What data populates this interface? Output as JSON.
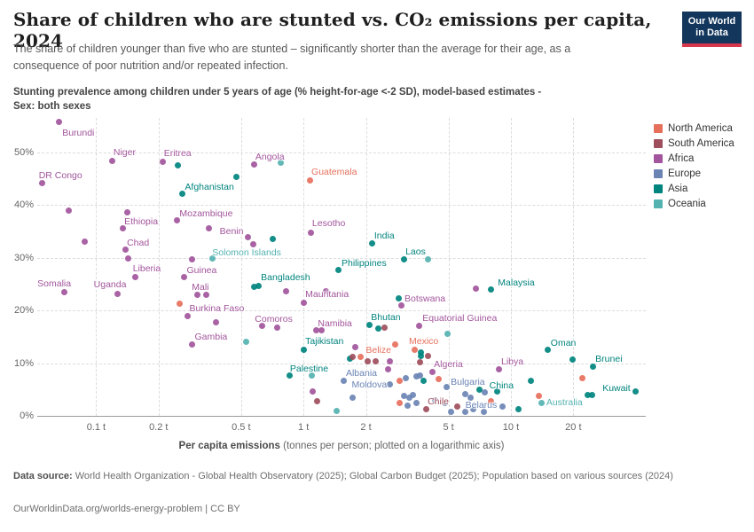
{
  "header": {
    "title": "Share of children who are stunted vs. CO₂ emissions per capita, 2024",
    "subtitle": "The share of children younger than five who are stunted – significantly shorter than the average for their age, as a consequence of poor nutrition and/or repeated infection.",
    "note_line1": "Stunting prevalence among children under 5 years of age (% height-for-age <-2 SD), model-based estimates -",
    "note_line2": "Sex: both sexes",
    "logo_line1": "Our World",
    "logo_line2": "in Data"
  },
  "chart_data": {
    "type": "scatter",
    "x_log": true,
    "xlim": [
      0.052,
      44.7
    ],
    "ylim": [
      0,
      56.5
    ],
    "grid": true,
    "legend_position": "right",
    "xlabel_bold": "Per capita emissions",
    "xlabel_rest": " (tonnes per person; plotted on a logarithmic axis)",
    "x_ticks": [
      {
        "v": 0.1,
        "label": "0.1 t"
      },
      {
        "v": 0.2,
        "label": "0.2 t"
      },
      {
        "v": 0.5,
        "label": "0.5 t"
      },
      {
        "v": 1,
        "label": "1 t"
      },
      {
        "v": 2,
        "label": "2 t"
      },
      {
        "v": 5,
        "label": "5 t"
      },
      {
        "v": 10,
        "label": "10 t"
      },
      {
        "v": 20,
        "label": "20 t"
      }
    ],
    "y_ticks": [
      {
        "v": 0,
        "label": "0%"
      },
      {
        "v": 10,
        "label": "10%"
      },
      {
        "v": 20,
        "label": "20%"
      },
      {
        "v": 30,
        "label": "30%"
      },
      {
        "v": 40,
        "label": "40%"
      },
      {
        "v": 50,
        "label": "50%"
      }
    ],
    "continent_colors": {
      "na": "#e6705c",
      "sa": "#9e4e5c",
      "af": "#a2559c",
      "eu": "#6b84b4",
      "as": "#00847e",
      "oc": "#54b2b0"
    },
    "legend": [
      {
        "label": "North America",
        "c": "na"
      },
      {
        "label": "South America",
        "c": "sa"
      },
      {
        "label": "Africa",
        "c": "af"
      },
      {
        "label": "Europe",
        "c": "eu"
      },
      {
        "label": "Asia",
        "c": "as"
      },
      {
        "label": "Oceania",
        "c": "oc"
      }
    ],
    "points": [
      {
        "n": "Burundi",
        "c": "af",
        "x": 0.066,
        "y": 55.7,
        "l": [
          4,
          12
        ]
      },
      {
        "n": "Niger",
        "c": "af",
        "x": 0.12,
        "y": 48.3,
        "l": [
          1,
          -10
        ]
      },
      {
        "n": "Eritrea",
        "c": "af",
        "x": 0.21,
        "y": 48.1,
        "l": [
          1,
          -10
        ]
      },
      {
        "n": "Angola",
        "c": "af",
        "x": 0.58,
        "y": 47.6,
        "l": [
          1,
          -9
        ]
      },
      {
        "n": "DR Congo",
        "c": "af",
        "x": 0.055,
        "y": 44.1,
        "l": [
          -4,
          -9
        ]
      },
      {
        "n": "Afghanistan",
        "c": "as",
        "x": 0.26,
        "y": 42.1,
        "l": [
          3,
          -8
        ]
      },
      {
        "n": "Guatemala",
        "c": "na",
        "x": 1.07,
        "y": 44.6,
        "l": [
          2,
          -10
        ]
      },
      {
        "n": "Ethiopia",
        "c": "af",
        "x": 0.134,
        "y": 35.5,
        "l": [
          2,
          -8
        ]
      },
      {
        "n": "Mozambique",
        "c": "af",
        "x": 0.245,
        "y": 37.0,
        "l": [
          3,
          -8
        ]
      },
      {
        "n": "Chad",
        "c": "af",
        "x": 0.138,
        "y": 31.5,
        "l": [
          2,
          -8
        ]
      },
      {
        "n": "Benin",
        "c": "af",
        "x": 0.54,
        "y": 33.8,
        "l": [
          -32,
          -7
        ]
      },
      {
        "n": "Solomon Islands",
        "c": "oc",
        "x": 0.363,
        "y": 29.8,
        "l": [
          0,
          -7
        ]
      },
      {
        "n": "Liberia",
        "c": "af",
        "x": 0.143,
        "y": 29.8,
        "l": [
          5,
          11
        ]
      },
      {
        "n": "Guinea",
        "c": "af",
        "x": 0.29,
        "y": 29.6,
        "l": [
          -6,
          12
        ]
      },
      {
        "n": "Somalia",
        "c": "af",
        "x": 0.07,
        "y": 23.4,
        "l": [
          -30,
          -10
        ]
      },
      {
        "n": "Uganda",
        "c": "af",
        "x": 0.127,
        "y": 23.2,
        "l": [
          -27,
          -10
        ]
      },
      {
        "n": "Mali",
        "c": "af",
        "x": 0.307,
        "y": 22.9,
        "l": [
          -6,
          -9
        ]
      },
      {
        "n": "Burkina Faso",
        "c": "af",
        "x": 0.276,
        "y": 18.9,
        "l": [
          2,
          -9
        ]
      },
      {
        "n": "Gambia",
        "c": "af",
        "x": 0.29,
        "y": 13.5,
        "l": [
          3,
          -9
        ]
      },
      {
        "n": "Comoros",
        "c": "af",
        "x": 0.63,
        "y": 17.0,
        "l": [
          -8,
          -8
        ]
      },
      {
        "n": "Bangladesh",
        "c": "as",
        "x": 0.605,
        "y": 24.6,
        "l": [
          3,
          -10
        ]
      },
      {
        "n": "Mauritania",
        "c": "af",
        "x": 1.0,
        "y": 21.4,
        "l": [
          2,
          -10
        ]
      },
      {
        "n": "Lesotho",
        "c": "af",
        "x": 1.09,
        "y": 34.8,
        "l": [
          1,
          -10
        ]
      },
      {
        "n": "India",
        "c": "as",
        "x": 2.15,
        "y": 32.7,
        "l": [
          2,
          -9
        ]
      },
      {
        "n": "Laos",
        "c": "as",
        "x": 3.04,
        "y": 29.6,
        "l": [
          2,
          -9
        ]
      },
      {
        "n": "Philippines",
        "c": "as",
        "x": 1.48,
        "y": 27.6,
        "l": [
          3,
          -8
        ]
      },
      {
        "n": "Botswana",
        "c": "af",
        "x": 2.95,
        "y": 20.9,
        "l": [
          4,
          -8
        ]
      },
      {
        "n": "Malaysia",
        "c": "as",
        "x": 8.0,
        "y": 23.9,
        "l": [
          8,
          -8
        ]
      },
      {
        "n": "Bhutan",
        "c": "as",
        "x": 2.29,
        "y": 16.5,
        "l": [
          -8,
          -13
        ]
      },
      {
        "n": "Equatorial Guinea",
        "c": "af",
        "x": 3.6,
        "y": 17.0,
        "l": [
          4,
          -9
        ]
      },
      {
        "n": "Namibia",
        "c": "af",
        "x": 1.15,
        "y": 16.3,
        "l": [
          2,
          -7
        ]
      },
      {
        "n": "Tajikistan",
        "c": "as",
        "x": 1.0,
        "y": 12.6,
        "l": [
          2,
          -9
        ]
      },
      {
        "n": "Belize",
        "c": "na",
        "x": 2.78,
        "y": 13.5,
        "l": [
          -5,
          6
        ],
        "a": "e"
      },
      {
        "n": "Mexico",
        "c": "na",
        "x": 3.42,
        "y": 12.6,
        "l": [
          -6,
          -9
        ]
      },
      {
        "n": "Palestine",
        "c": "as",
        "x": 0.86,
        "y": 7.6,
        "l": [
          0,
          -8
        ]
      },
      {
        "n": "Albania",
        "c": "eu",
        "x": 1.57,
        "y": 6.7,
        "l": [
          2,
          -8
        ]
      },
      {
        "n": "Moldova",
        "c": "eu",
        "x": 2.6,
        "y": 6.0,
        "l": [
          -3,
          1
        ],
        "a": "e"
      },
      {
        "n": "Algeria",
        "c": "af",
        "x": 4.17,
        "y": 8.4,
        "l": [
          2,
          -8
        ]
      },
      {
        "n": "Libya",
        "c": "af",
        "x": 8.8,
        "y": 8.8,
        "l": [
          2,
          -9
        ]
      },
      {
        "n": "Bulgaria",
        "c": "eu",
        "x": 4.88,
        "y": 5.4,
        "l": [
          5,
          -6
        ]
      },
      {
        "n": "Chile",
        "c": "sa",
        "x": 3.89,
        "y": 1.2,
        "l": [
          2,
          -9
        ]
      },
      {
        "n": "Belarus",
        "c": "eu",
        "x": 6.4,
        "y": 3.5,
        "l": [
          -6,
          9
        ]
      },
      {
        "n": "China",
        "c": "as",
        "x": 8.6,
        "y": 4.6,
        "l": [
          -9,
          -7
        ]
      },
      {
        "n": "Oman",
        "c": "as",
        "x": 15.1,
        "y": 12.6,
        "l": [
          3,
          -7
        ]
      },
      {
        "n": "Brunei",
        "c": "as",
        "x": 24.8,
        "y": 9.3,
        "l": [
          3,
          -9
        ]
      },
      {
        "n": "Kuwait",
        "c": "as",
        "x": 40.0,
        "y": 4.7,
        "l": [
          -6,
          -3
        ],
        "a": "e"
      },
      {
        "n": "Australia",
        "c": "oc",
        "x": 14.1,
        "y": 2.4,
        "l": [
          5,
          -1
        ]
      },
      {
        "n": "",
        "c": "as",
        "x": 0.247,
        "y": 47.5
      },
      {
        "n": "",
        "c": "oc",
        "x": 0.78,
        "y": 48.0
      },
      {
        "n": "",
        "c": "as",
        "x": 0.473,
        "y": 45.4
      },
      {
        "n": "",
        "c": "af",
        "x": 0.074,
        "y": 38.9
      },
      {
        "n": "",
        "c": "af",
        "x": 0.141,
        "y": 38.6
      },
      {
        "n": "",
        "c": "af",
        "x": 0.088,
        "y": 33.0
      },
      {
        "n": "",
        "c": "af",
        "x": 0.35,
        "y": 35.5
      },
      {
        "n": "",
        "c": "as",
        "x": 0.71,
        "y": 33.5
      },
      {
        "n": "",
        "c": "af",
        "x": 0.154,
        "y": 26.4
      },
      {
        "n": "",
        "c": "af",
        "x": 0.266,
        "y": 26.3
      },
      {
        "n": "",
        "c": "af",
        "x": 0.34,
        "y": 22.9
      },
      {
        "n": "",
        "c": "af",
        "x": 0.82,
        "y": 23.6
      },
      {
        "n": "",
        "c": "af",
        "x": 1.28,
        "y": 23.7
      },
      {
        "n": "",
        "c": "na",
        "x": 0.252,
        "y": 21.2
      },
      {
        "n": "",
        "c": "af",
        "x": 0.377,
        "y": 17.8
      },
      {
        "n": "",
        "c": "af",
        "x": 0.75,
        "y": 16.8
      },
      {
        "n": "",
        "c": "oc",
        "x": 0.53,
        "y": 14.1
      },
      {
        "n": "",
        "c": "as",
        "x": 0.58,
        "y": 24.4
      },
      {
        "n": "",
        "c": "af",
        "x": 6.75,
        "y": 24.2
      },
      {
        "n": "",
        "c": "as",
        "x": 2.87,
        "y": 22.2
      },
      {
        "n": "",
        "c": "oc",
        "x": 4.0,
        "y": 29.6
      },
      {
        "n": "",
        "c": "sa",
        "x": 2.45,
        "y": 16.8
      },
      {
        "n": "",
        "c": "as",
        "x": 2.07,
        "y": 17.3
      },
      {
        "n": "",
        "c": "oc",
        "x": 4.93,
        "y": 15.5
      },
      {
        "n": "",
        "c": "af",
        "x": 1.77,
        "y": 13.1
      },
      {
        "n": "",
        "c": "oc",
        "x": 1.1,
        "y": 7.6
      },
      {
        "n": "",
        "c": "af",
        "x": 1.11,
        "y": 4.7
      },
      {
        "n": "",
        "c": "sa",
        "x": 1.16,
        "y": 2.7
      },
      {
        "n": "",
        "c": "oc",
        "x": 1.44,
        "y": 1.0
      },
      {
        "n": "",
        "c": "as",
        "x": 1.67,
        "y": 10.8
      },
      {
        "n": "",
        "c": "sa",
        "x": 1.72,
        "y": 11.1
      },
      {
        "n": "",
        "c": "na",
        "x": 1.88,
        "y": 11.1
      },
      {
        "n": "",
        "c": "sa",
        "x": 2.03,
        "y": 10.3
      },
      {
        "n": "",
        "c": "sa",
        "x": 2.22,
        "y": 10.3
      },
      {
        "n": "",
        "c": "af",
        "x": 2.62,
        "y": 10.4
      },
      {
        "n": "",
        "c": "af",
        "x": 2.55,
        "y": 8.9
      },
      {
        "n": "",
        "c": "eu",
        "x": 1.72,
        "y": 3.5
      },
      {
        "n": "",
        "c": "na",
        "x": 2.9,
        "y": 6.6
      },
      {
        "n": "",
        "c": "eu",
        "x": 3.1,
        "y": 7.2
      },
      {
        "n": "",
        "c": "eu",
        "x": 3.49,
        "y": 7.4
      },
      {
        "n": "",
        "c": "eu",
        "x": 3.63,
        "y": 7.7
      },
      {
        "n": "",
        "c": "as",
        "x": 3.81,
        "y": 6.6
      },
      {
        "n": "",
        "c": "na",
        "x": 4.5,
        "y": 6.9
      },
      {
        "n": "",
        "c": "eu",
        "x": 3.04,
        "y": 3.7
      },
      {
        "n": "",
        "c": "eu",
        "x": 3.25,
        "y": 3.4
      },
      {
        "n": "",
        "c": "eu",
        "x": 3.38,
        "y": 4.0
      },
      {
        "n": "",
        "c": "na",
        "x": 2.92,
        "y": 2.4
      },
      {
        "n": "",
        "c": "eu",
        "x": 3.16,
        "y": 2.0
      },
      {
        "n": "",
        "c": "eu",
        "x": 3.49,
        "y": 2.5
      },
      {
        "n": "",
        "c": "eu",
        "x": 4.3,
        "y": 3.0
      },
      {
        "n": "",
        "c": "eu",
        "x": 4.78,
        "y": 2.4
      },
      {
        "n": "",
        "c": "eu",
        "x": 5.17,
        "y": 0.8
      },
      {
        "n": "",
        "c": "sa",
        "x": 5.53,
        "y": 1.7
      },
      {
        "n": "",
        "c": "eu",
        "x": 6.05,
        "y": 4.2
      },
      {
        "n": "",
        "c": "eu",
        "x": 6.55,
        "y": 1.2
      },
      {
        "n": "",
        "c": "as",
        "x": 7.04,
        "y": 4.9
      },
      {
        "n": "",
        "c": "eu",
        "x": 7.45,
        "y": 4.5
      },
      {
        "n": "",
        "c": "eu",
        "x": 7.38,
        "y": 0.8
      },
      {
        "n": "",
        "c": "eu",
        "x": 6.0,
        "y": 0.8
      },
      {
        "n": "",
        "c": "na",
        "x": 8.0,
        "y": 2.7
      },
      {
        "n": "",
        "c": "eu",
        "x": 9.15,
        "y": 1.7
      },
      {
        "n": "",
        "c": "as",
        "x": 10.9,
        "y": 1.3
      },
      {
        "n": "",
        "c": "as",
        "x": 12.5,
        "y": 6.7
      },
      {
        "n": "",
        "c": "na",
        "x": 13.6,
        "y": 3.7
      },
      {
        "n": "",
        "c": "as",
        "x": 19.9,
        "y": 10.6
      },
      {
        "n": "",
        "c": "na",
        "x": 22.2,
        "y": 7.2
      },
      {
        "n": "",
        "c": "as",
        "x": 23.4,
        "y": 4.0
      },
      {
        "n": "",
        "c": "as",
        "x": 24.6,
        "y": 4.0
      },
      {
        "n": "",
        "c": "af",
        "x": 1.22,
        "y": 16.2
      },
      {
        "n": "",
        "c": "sa",
        "x": 3.63,
        "y": 10.1
      },
      {
        "n": "",
        "c": "sa",
        "x": 4.0,
        "y": 11.3
      },
      {
        "n": "",
        "c": "as",
        "x": 3.67,
        "y": 12.1
      },
      {
        "n": "",
        "c": "as",
        "x": 3.67,
        "y": 11.4
      },
      {
        "n": "",
        "c": "af",
        "x": 0.57,
        "y": 32.5
      }
    ]
  },
  "footer": {
    "source_bold": "Data source:",
    "source_text": " World Health Organization - Global Health Observatory (2025); Global Carbon Budget (2025); Population based on various sources (2024)",
    "link": "OurWorldinData.org/worlds-energy-problem | CC BY"
  }
}
